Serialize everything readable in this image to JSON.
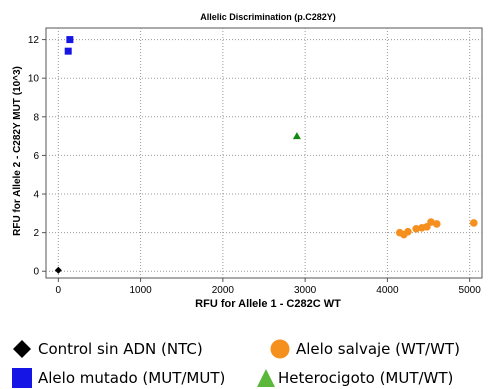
{
  "chart_data": {
    "type": "scatter",
    "title": "Allelic Discrimination (p.C282Y)",
    "xlabel": "RFU for Allele 1 - C282C WT",
    "ylabel": "RFU for Allele 2 - C282Y MUT (10^3)",
    "xlim": [
      -150,
      5150
    ],
    "ylim": [
      -0.35,
      12.6
    ],
    "x_ticks": [
      0,
      1000,
      2000,
      3000,
      4000,
      5000
    ],
    "x_tick_labels": [
      "0",
      "1000",
      "2000",
      "3000",
      "4000",
      "5000"
    ],
    "y_ticks": [
      0,
      2,
      4,
      6,
      8,
      10,
      12
    ],
    "y_tick_labels": [
      "0",
      "2",
      "4",
      "6",
      "8",
      "10",
      "12"
    ],
    "grid": true,
    "legend_position": "bottom",
    "series": [
      {
        "name": "Control sin ADN (NTC)",
        "marker": "diamond",
        "color": "#000000",
        "points": [
          [
            0,
            0.05
          ]
        ]
      },
      {
        "name": "Alelo mutado (MUT/MUT)",
        "marker": "square",
        "color": "#1515e6",
        "points": [
          [
            140,
            12.0
          ],
          [
            120,
            11.4
          ]
        ]
      },
      {
        "name": "Heterocigoto (MUT/WT)",
        "marker": "triangle",
        "color": "#118811",
        "points": [
          [
            2900,
            7.0
          ]
        ]
      },
      {
        "name": "Alelo salvaje (WT/WT)",
        "marker": "circle",
        "color": "#f5901e",
        "points": [
          [
            4150,
            2.0
          ],
          [
            4200,
            1.9
          ],
          [
            4250,
            2.05
          ],
          [
            4350,
            2.2
          ],
          [
            4420,
            2.25
          ],
          [
            4480,
            2.3
          ],
          [
            4530,
            2.55
          ],
          [
            4600,
            2.45
          ],
          [
            5050,
            2.5
          ]
        ]
      }
    ]
  },
  "legend": {
    "ntc": "Control sin ADN (NTC)",
    "wt": "Alelo salvaje (WT/WT)",
    "mut": "Alelo mutado (MUT/MUT)",
    "het": "Heterocigoto (MUT/WT)"
  }
}
